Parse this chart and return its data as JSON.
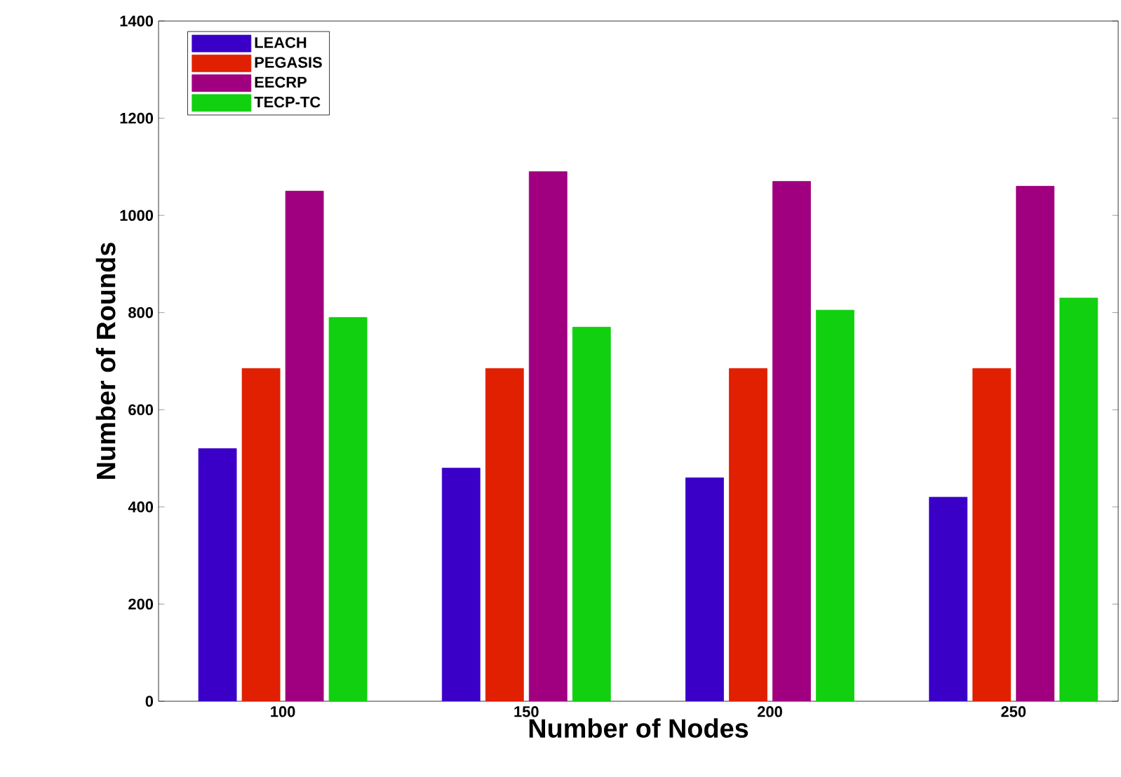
{
  "chart_data": {
    "type": "bar",
    "xlabel": "Number of Nodes",
    "ylabel": "Number of Rounds",
    "categories": [
      "100",
      "150",
      "200",
      "250"
    ],
    "series": [
      {
        "name": "LEACH",
        "color": "#3a00c8",
        "values": [
          520,
          480,
          460,
          420
        ]
      },
      {
        "name": "PEGASIS",
        "color": "#e02000",
        "values": [
          685,
          685,
          685,
          685
        ]
      },
      {
        "name": "EECRP",
        "color": "#a0007f",
        "values": [
          1050,
          1090,
          1070,
          1060
        ]
      },
      {
        "name": "TECP-TC",
        "color": "#10d010",
        "values": [
          790,
          770,
          805,
          830
        ]
      }
    ],
    "ylim": [
      0,
      1400
    ],
    "yticks": [
      0,
      200,
      400,
      600,
      800,
      1000,
      1200,
      1400
    ],
    "legend": "top left",
    "grid": false
  }
}
